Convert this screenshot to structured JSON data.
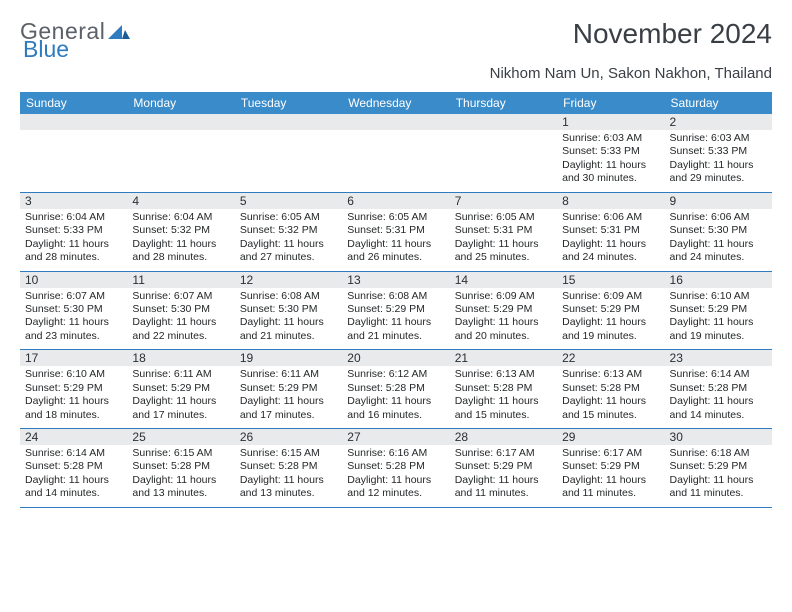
{
  "brand": {
    "part1": "General",
    "part2": "Blue"
  },
  "title": "November 2024",
  "subtitle": "Nikhom Nam Un, Sakon Nakhon, Thailand",
  "colors": {
    "header_bg": "#3a8bc9",
    "header_text": "#ffffff",
    "daynum_bg": "#e9eaec",
    "rule": "#2f7bbf",
    "body_text": "#242729",
    "title_text": "#3a3f45",
    "logo_gray": "#5b6168",
    "logo_blue": "#2f7bbf"
  },
  "fonts": {
    "title_size_pt": 21,
    "subtitle_size_pt": 11,
    "dayhead_size_pt": 9,
    "body_size_pt": 8
  },
  "day_names": [
    "Sunday",
    "Monday",
    "Tuesday",
    "Wednesday",
    "Thursday",
    "Friday",
    "Saturday"
  ],
  "weeks": [
    [
      {
        "n": "",
        "sr": "",
        "ss": "",
        "dl": ""
      },
      {
        "n": "",
        "sr": "",
        "ss": "",
        "dl": ""
      },
      {
        "n": "",
        "sr": "",
        "ss": "",
        "dl": ""
      },
      {
        "n": "",
        "sr": "",
        "ss": "",
        "dl": ""
      },
      {
        "n": "",
        "sr": "",
        "ss": "",
        "dl": ""
      },
      {
        "n": "1",
        "sr": "Sunrise: 6:03 AM",
        "ss": "Sunset: 5:33 PM",
        "dl": "Daylight: 11 hours and 30 minutes."
      },
      {
        "n": "2",
        "sr": "Sunrise: 6:03 AM",
        "ss": "Sunset: 5:33 PM",
        "dl": "Daylight: 11 hours and 29 minutes."
      }
    ],
    [
      {
        "n": "3",
        "sr": "Sunrise: 6:04 AM",
        "ss": "Sunset: 5:33 PM",
        "dl": "Daylight: 11 hours and 28 minutes."
      },
      {
        "n": "4",
        "sr": "Sunrise: 6:04 AM",
        "ss": "Sunset: 5:32 PM",
        "dl": "Daylight: 11 hours and 28 minutes."
      },
      {
        "n": "5",
        "sr": "Sunrise: 6:05 AM",
        "ss": "Sunset: 5:32 PM",
        "dl": "Daylight: 11 hours and 27 minutes."
      },
      {
        "n": "6",
        "sr": "Sunrise: 6:05 AM",
        "ss": "Sunset: 5:31 PM",
        "dl": "Daylight: 11 hours and 26 minutes."
      },
      {
        "n": "7",
        "sr": "Sunrise: 6:05 AM",
        "ss": "Sunset: 5:31 PM",
        "dl": "Daylight: 11 hours and 25 minutes."
      },
      {
        "n": "8",
        "sr": "Sunrise: 6:06 AM",
        "ss": "Sunset: 5:31 PM",
        "dl": "Daylight: 11 hours and 24 minutes."
      },
      {
        "n": "9",
        "sr": "Sunrise: 6:06 AM",
        "ss": "Sunset: 5:30 PM",
        "dl": "Daylight: 11 hours and 24 minutes."
      }
    ],
    [
      {
        "n": "10",
        "sr": "Sunrise: 6:07 AM",
        "ss": "Sunset: 5:30 PM",
        "dl": "Daylight: 11 hours and 23 minutes."
      },
      {
        "n": "11",
        "sr": "Sunrise: 6:07 AM",
        "ss": "Sunset: 5:30 PM",
        "dl": "Daylight: 11 hours and 22 minutes."
      },
      {
        "n": "12",
        "sr": "Sunrise: 6:08 AM",
        "ss": "Sunset: 5:30 PM",
        "dl": "Daylight: 11 hours and 21 minutes."
      },
      {
        "n": "13",
        "sr": "Sunrise: 6:08 AM",
        "ss": "Sunset: 5:29 PM",
        "dl": "Daylight: 11 hours and 21 minutes."
      },
      {
        "n": "14",
        "sr": "Sunrise: 6:09 AM",
        "ss": "Sunset: 5:29 PM",
        "dl": "Daylight: 11 hours and 20 minutes."
      },
      {
        "n": "15",
        "sr": "Sunrise: 6:09 AM",
        "ss": "Sunset: 5:29 PM",
        "dl": "Daylight: 11 hours and 19 minutes."
      },
      {
        "n": "16",
        "sr": "Sunrise: 6:10 AM",
        "ss": "Sunset: 5:29 PM",
        "dl": "Daylight: 11 hours and 19 minutes."
      }
    ],
    [
      {
        "n": "17",
        "sr": "Sunrise: 6:10 AM",
        "ss": "Sunset: 5:29 PM",
        "dl": "Daylight: 11 hours and 18 minutes."
      },
      {
        "n": "18",
        "sr": "Sunrise: 6:11 AM",
        "ss": "Sunset: 5:29 PM",
        "dl": "Daylight: 11 hours and 17 minutes."
      },
      {
        "n": "19",
        "sr": "Sunrise: 6:11 AM",
        "ss": "Sunset: 5:29 PM",
        "dl": "Daylight: 11 hours and 17 minutes."
      },
      {
        "n": "20",
        "sr": "Sunrise: 6:12 AM",
        "ss": "Sunset: 5:28 PM",
        "dl": "Daylight: 11 hours and 16 minutes."
      },
      {
        "n": "21",
        "sr": "Sunrise: 6:13 AM",
        "ss": "Sunset: 5:28 PM",
        "dl": "Daylight: 11 hours and 15 minutes."
      },
      {
        "n": "22",
        "sr": "Sunrise: 6:13 AM",
        "ss": "Sunset: 5:28 PM",
        "dl": "Daylight: 11 hours and 15 minutes."
      },
      {
        "n": "23",
        "sr": "Sunrise: 6:14 AM",
        "ss": "Sunset: 5:28 PM",
        "dl": "Daylight: 11 hours and 14 minutes."
      }
    ],
    [
      {
        "n": "24",
        "sr": "Sunrise: 6:14 AM",
        "ss": "Sunset: 5:28 PM",
        "dl": "Daylight: 11 hours and 14 minutes."
      },
      {
        "n": "25",
        "sr": "Sunrise: 6:15 AM",
        "ss": "Sunset: 5:28 PM",
        "dl": "Daylight: 11 hours and 13 minutes."
      },
      {
        "n": "26",
        "sr": "Sunrise: 6:15 AM",
        "ss": "Sunset: 5:28 PM",
        "dl": "Daylight: 11 hours and 13 minutes."
      },
      {
        "n": "27",
        "sr": "Sunrise: 6:16 AM",
        "ss": "Sunset: 5:28 PM",
        "dl": "Daylight: 11 hours and 12 minutes."
      },
      {
        "n": "28",
        "sr": "Sunrise: 6:17 AM",
        "ss": "Sunset: 5:29 PM",
        "dl": "Daylight: 11 hours and 11 minutes."
      },
      {
        "n": "29",
        "sr": "Sunrise: 6:17 AM",
        "ss": "Sunset: 5:29 PM",
        "dl": "Daylight: 11 hours and 11 minutes."
      },
      {
        "n": "30",
        "sr": "Sunrise: 6:18 AM",
        "ss": "Sunset: 5:29 PM",
        "dl": "Daylight: 11 hours and 11 minutes."
      }
    ]
  ]
}
